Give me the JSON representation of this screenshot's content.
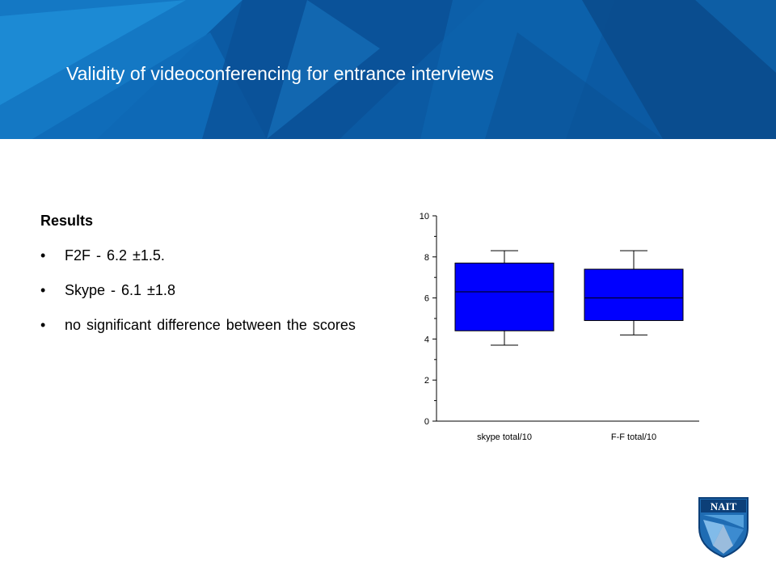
{
  "slide": {
    "title": "Validity of videoconferencing for entrance interviews",
    "results_heading": "Results",
    "bullets": [
      "F2F -  6.2 ±1.5.",
      "Skype  - 6.1 ±1.8",
      "no significant difference between the scores"
    ],
    "bullet_symbol": "•"
  },
  "logo": {
    "text": "NAIT"
  },
  "colors": {
    "header_base": "#0a4f94",
    "box_fill": "#0000ff",
    "title_text": "#ffffff",
    "logo_blue": "#1f6cb3"
  },
  "chart_data": {
    "type": "box",
    "categories": [
      "skype total/10",
      "F-F total/10"
    ],
    "boxes": [
      {
        "category": "skype total/10",
        "min": 3.7,
        "q1": 4.4,
        "median": 6.3,
        "q3": 7.7,
        "max": 8.3
      },
      {
        "category": "F-F total/10",
        "min": 4.2,
        "q1": 4.9,
        "median": 6.0,
        "q3": 7.4,
        "max": 8.3
      }
    ],
    "ylim": [
      0,
      10
    ],
    "yticks": [
      0,
      2,
      4,
      6,
      8,
      10
    ],
    "xlabel": "",
    "ylabel": "",
    "grid": false
  }
}
